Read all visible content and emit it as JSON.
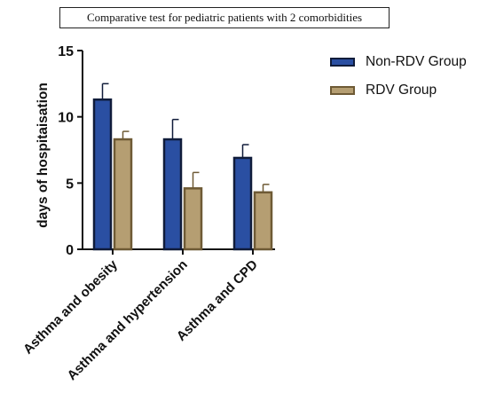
{
  "chart_data": {
    "type": "bar",
    "title": "Comparative test for pediatric patients with 2 comorbidities",
    "xlabel": "",
    "ylabel": "days of hospitaisation",
    "ylim": [
      0,
      15
    ],
    "yticks": [
      0,
      5,
      10,
      15
    ],
    "categories": [
      "Asthma and obesity",
      "Asthma and hypertension",
      "Asthma and CPD"
    ],
    "series": [
      {
        "name": "Non-RDV Group",
        "values": [
          11.3,
          8.3,
          6.9
        ],
        "error_upper": [
          1.2,
          1.5,
          1.0
        ],
        "fill": "#2a4fa2",
        "stroke": "#101c3a"
      },
      {
        "name": "RDV Group",
        "values": [
          8.3,
          4.6,
          4.3
        ],
        "error_upper": [
          0.6,
          1.2,
          0.6
        ],
        "fill": "#b59e72",
        "stroke": "#6e5a35"
      }
    ],
    "legend_position": "top-right",
    "grid": false
  }
}
